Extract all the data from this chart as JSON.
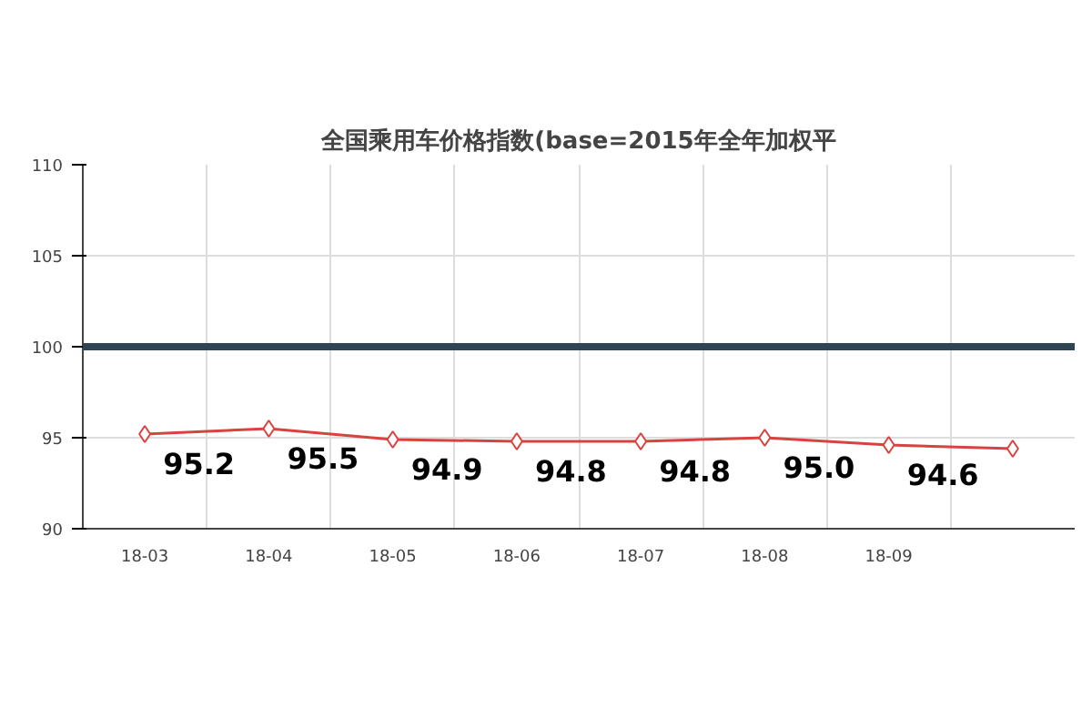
{
  "chart_data": {
    "type": "line",
    "title": "全国乘用车价格指数(base=2015年全年加权平",
    "categories": [
      "18-03",
      "18-04",
      "18-05",
      "18-06",
      "18-07",
      "18-08",
      "18-09",
      null
    ],
    "series": [
      {
        "color": "#d9433f",
        "values": [
          95.2,
          95.5,
          94.9,
          94.8,
          94.8,
          95.0,
          94.6,
          94.4
        ],
        "value_labels": [
          "95.2",
          "95.5",
          "94.9",
          "94.8",
          "94.8",
          "95.0",
          "94.6",
          null
        ]
      }
    ],
    "ylim": [
      90,
      110
    ],
    "yticks": [
      90,
      95,
      100,
      105,
      110
    ],
    "grid": true,
    "marker": "diamond",
    "line_style": "solid",
    "ref_lines": [
      {
        "axis": "y",
        "value": 100,
        "color": "#2f4554"
      }
    ]
  }
}
